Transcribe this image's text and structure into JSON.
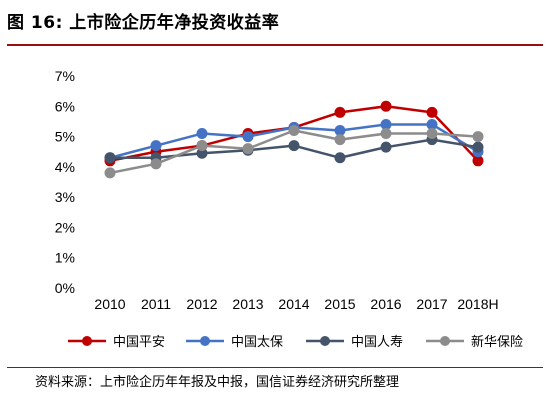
{
  "header": {
    "title": "图 16:  上市险企历年净投资收益率"
  },
  "footer": {
    "source": "资料来源：上市险企历年年报及中报，国信证券经济研究所整理"
  },
  "chart_data": {
    "type": "line",
    "title": "",
    "xlabel": "",
    "ylabel": "",
    "categories": [
      "2010",
      "2011",
      "2012",
      "2013",
      "2014",
      "2015",
      "2016",
      "2017",
      "2018H"
    ],
    "ylim": [
      0,
      7
    ],
    "yticks": [
      0,
      1,
      2,
      3,
      4,
      5,
      6,
      7
    ],
    "ytick_labels": [
      "0%",
      "1%",
      "2%",
      "3%",
      "4%",
      "5%",
      "6%",
      "7%"
    ],
    "grid": false,
    "legend_position": "bottom",
    "series": [
      {
        "name": "中国平安",
        "color": "#c00000",
        "values": [
          4.2,
          4.5,
          4.7,
          5.1,
          5.3,
          5.8,
          6.0,
          5.8,
          4.2
        ]
      },
      {
        "name": "中国太保",
        "color": "#4472c4",
        "values": [
          4.3,
          4.7,
          5.1,
          5.0,
          5.3,
          5.2,
          5.4,
          5.4,
          4.5
        ]
      },
      {
        "name": "中国人寿",
        "color": "#44546a",
        "values": [
          4.3,
          4.3,
          4.45,
          4.55,
          4.7,
          4.3,
          4.65,
          4.9,
          4.65
        ]
      },
      {
        "name": "新华保险",
        "color": "#8c8c8c",
        "values": [
          3.8,
          4.1,
          4.7,
          4.6,
          5.2,
          4.9,
          5.1,
          5.1,
          5.0
        ]
      }
    ]
  }
}
